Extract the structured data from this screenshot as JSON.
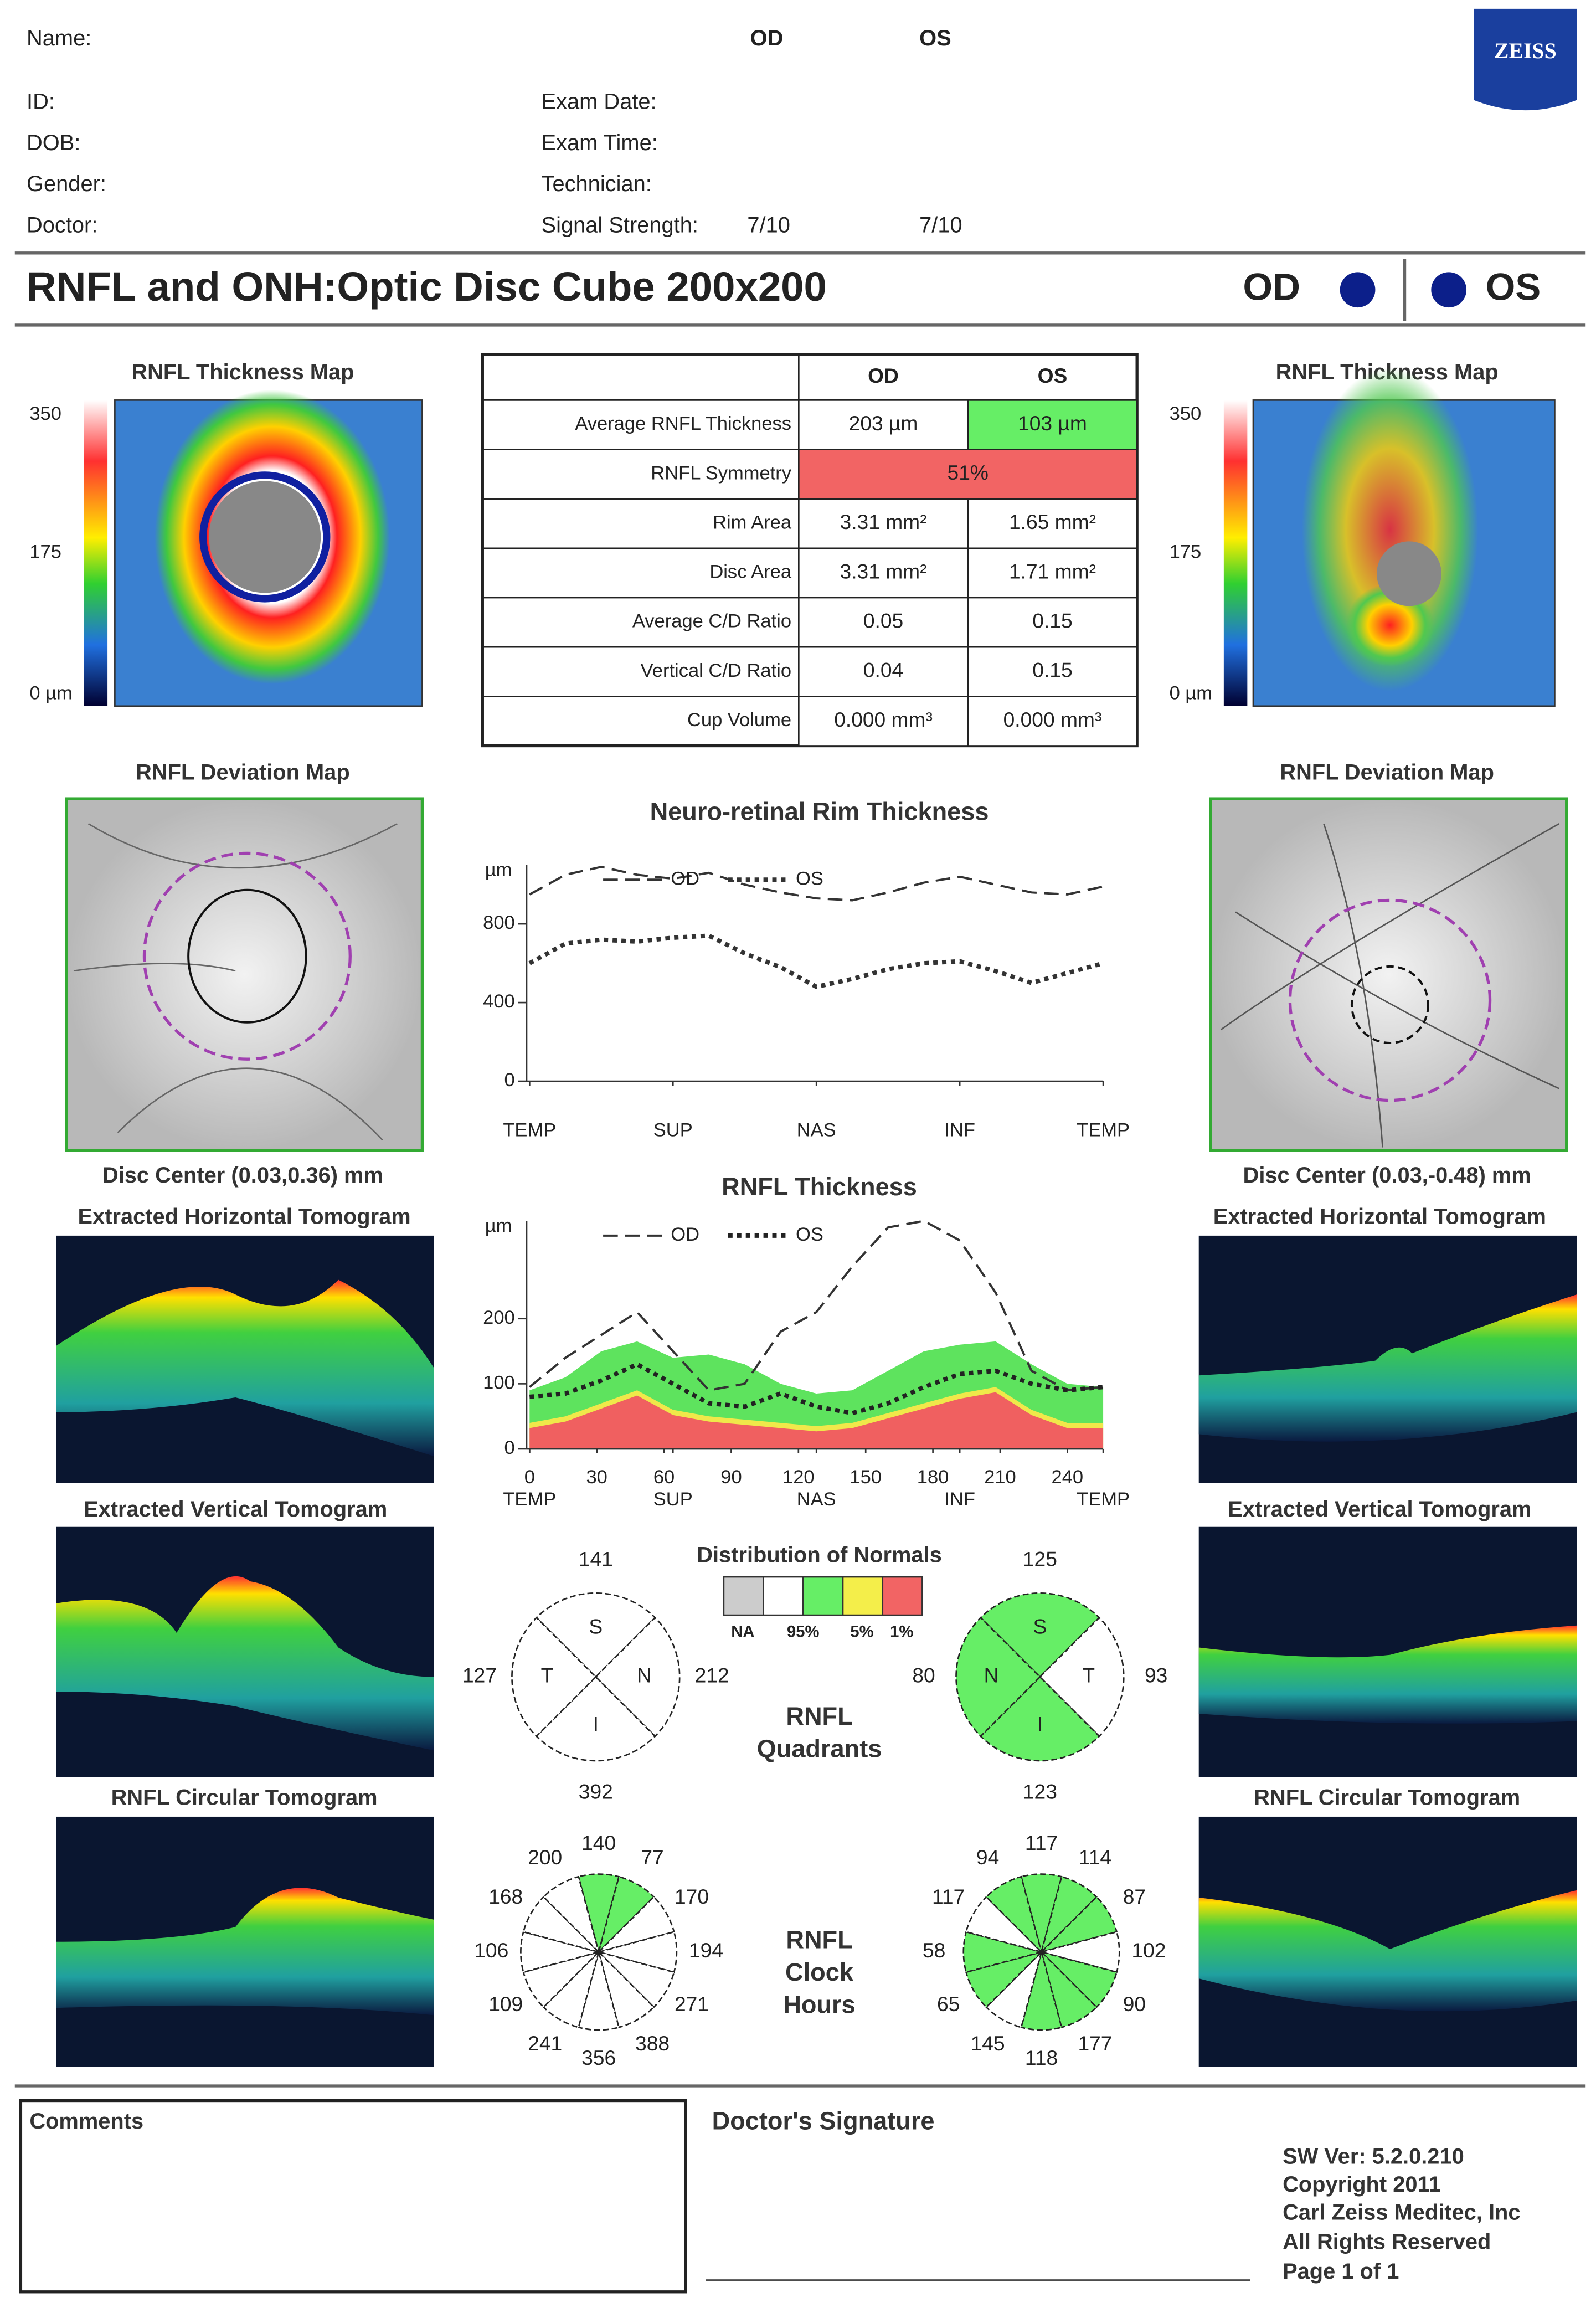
{
  "header": {
    "name": "Name:",
    "od": "OD",
    "os": "OS",
    "id": "ID:",
    "dob": "DOB:",
    "gender": "Gender:",
    "doctor": "Doctor:",
    "exam_date": "Exam Date:",
    "exam_time": "Exam Time:",
    "technician": "Technician:",
    "signal_label": "Signal Strength:",
    "signal_od": "7/10",
    "signal_os": "7/10",
    "logo": "ZEISS"
  },
  "title": "RNFL and ONH:Optic Disc Cube 200x200",
  "eyes": [
    "OD",
    "OS"
  ],
  "left_panel": {
    "thickness_map": "RNFL Thickness Map",
    "scale": [
      "350",
      "175",
      "0 µm"
    ],
    "deviation_map": "RNFL Deviation Map",
    "disc_center": "Disc Center  (0.03,0.36) mm",
    "horizontal": "Extracted Horizontal Tomogram",
    "vertical": "Extracted Vertical Tomogram",
    "circular": "RNFL Circular Tomogram"
  },
  "right_panel": {
    "thickness_map": "RNFL Thickness Map",
    "scale": [
      "350",
      "175",
      "0 µm"
    ],
    "deviation_map": "RNFL Deviation Map",
    "disc_center": "Disc Center  (0.03,-0.48) mm",
    "horizontal": "Extracted Horizontal Tomogram",
    "vertical": "Extracted Vertical Tomogram",
    "circular": "RNFL Circular Tomogram"
  },
  "table": {
    "columns": [
      "OD",
      "OS"
    ],
    "rows": [
      {
        "label": "Average RNFL Thickness",
        "values": [
          "203 µm",
          "103 µm"
        ],
        "colors": [
          "#ffffff",
          "#66ee66"
        ]
      },
      {
        "label": "RNFL Symmetry",
        "values": [
          "51%"
        ],
        "colors": [
          "#f26464"
        ]
      },
      {
        "label": "Rim Area",
        "values": [
          "3.31 mm²",
          "1.65 mm²"
        ]
      },
      {
        "label": "Disc Area",
        "values": [
          "3.31 mm²",
          "1.71 mm²"
        ]
      },
      {
        "label": "Average C/D Ratio",
        "values": [
          "0.05",
          "0.15"
        ]
      },
      {
        "label": "Vertical C/D Ratio",
        "values": [
          "0.04",
          "0.15"
        ]
      },
      {
        "label": "Cup Volume",
        "values": [
          "0.000 mm³",
          "0.000 mm³"
        ]
      }
    ]
  },
  "rim_chart": {
    "type": "line",
    "title": "Neuro-retinal Rim Thickness",
    "y_unit": "µm",
    "x": [
      0,
      16,
      32,
      48,
      64,
      80,
      96,
      112,
      128,
      144,
      160,
      176,
      192,
      208,
      224,
      240,
      256
    ],
    "xlim": [
      0,
      256
    ],
    "xticks": [
      {
        "value": 0,
        "label": "TEMP"
      },
      {
        "value": 64,
        "label": "SUP"
      },
      {
        "value": 128,
        "label": "NAS"
      },
      {
        "value": 192,
        "label": "INF"
      },
      {
        "value": 256,
        "label": "TEMP"
      }
    ],
    "ylim": [
      0,
      1100
    ],
    "yticks": [
      0,
      400,
      800
    ],
    "series": [
      {
        "name": "OD",
        "color": "#333333",
        "dash": "10 5",
        "values": [
          950,
          1050,
          1090,
          1050,
          1030,
          1060,
          1000,
          960,
          930,
          920,
          960,
          1010,
          1040,
          1000,
          960,
          950,
          990
        ]
      },
      {
        "name": "OS",
        "color": "#333333",
        "dash": "3 3",
        "values": [
          600,
          700,
          720,
          710,
          730,
          740,
          650,
          580,
          480,
          520,
          570,
          600,
          610,
          560,
          500,
          550,
          600
        ]
      }
    ]
  },
  "rnfl_chart": {
    "type": "line",
    "title": "RNFL Thickness",
    "y_unit": "µm",
    "x": [
      0,
      16,
      32,
      48,
      64,
      80,
      96,
      112,
      128,
      144,
      160,
      176,
      192,
      208,
      224,
      240,
      256
    ],
    "xlim": [
      0,
      256
    ],
    "xticks": [
      0,
      30,
      60,
      90,
      120,
      150,
      180,
      210,
      240
    ],
    "region_ticks": [
      {
        "value": 0,
        "label": "TEMP"
      },
      {
        "value": 64,
        "label": "SUP"
      },
      {
        "value": 128,
        "label": "NAS"
      },
      {
        "value": 192,
        "label": "INF"
      },
      {
        "value": 256,
        "label": "TEMP"
      }
    ],
    "ylim": [
      0,
      350
    ],
    "yticks": [
      0,
      100,
      200
    ],
    "normative": {
      "percentile_95": [
        90,
        110,
        150,
        165,
        140,
        145,
        130,
        100,
        85,
        90,
        120,
        150,
        160,
        165,
        130,
        100,
        95
      ],
      "percentile_5": [
        40,
        50,
        70,
        90,
        60,
        50,
        45,
        40,
        35,
        40,
        55,
        70,
        85,
        95,
        60,
        40,
        40
      ],
      "percentile_1": [
        32,
        42,
        62,
        82,
        52,
        42,
        37,
        32,
        27,
        32,
        47,
        62,
        77,
        87,
        52,
        32,
        32
      ],
      "colors": [
        "#5ee35e",
        "#f0e84a",
        "#f06060"
      ]
    },
    "series": [
      {
        "name": "OD",
        "color": "#333333",
        "dash": "10 5",
        "values": [
          95,
          140,
          175,
          210,
          150,
          90,
          100,
          180,
          210,
          280,
          340,
          350,
          320,
          240,
          120,
          90,
          95
        ]
      },
      {
        "name": "OS",
        "color": "#222222",
        "dash": "3 3",
        "values": [
          80,
          85,
          105,
          130,
          100,
          70,
          65,
          85,
          65,
          55,
          70,
          95,
          115,
          120,
          100,
          90,
          95
        ]
      }
    ]
  },
  "normals": {
    "title": "Distribution of Normals",
    "colors": [
      "#cccccc",
      "#ffffff",
      "#66ee66",
      "#f4ee4a",
      "#f26464"
    ],
    "labels": [
      "NA",
      null,
      "95%",
      "5%",
      "1%"
    ]
  },
  "quadrants": {
    "label": [
      "RNFL",
      "Quadrants"
    ],
    "od": [
      {
        "sector": "S",
        "value": 141,
        "color": "#ffffff"
      },
      {
        "sector": "N",
        "value": 212,
        "color": "#ffffff"
      },
      {
        "sector": "I",
        "value": 392,
        "color": "#ffffff"
      },
      {
        "sector": "T",
        "value": 127,
        "color": "#ffffff"
      }
    ],
    "os": [
      {
        "sector": "S",
        "value": 125,
        "color": "#66ee66"
      },
      {
        "sector": "T",
        "value": 93,
        "color": "#ffffff"
      },
      {
        "sector": "I",
        "value": 123,
        "color": "#66ee66"
      },
      {
        "sector": "N",
        "value": 80,
        "color": "#66ee66"
      }
    ]
  },
  "clock_hours": {
    "label": [
      "RNFL",
      "Clock",
      "Hours"
    ],
    "od": {
      "values": [
        140,
        77,
        170,
        194,
        271,
        388,
        356,
        241,
        109,
        106,
        168,
        200
      ],
      "colors": [
        "#66ee66",
        "#66ee66",
        "#ffffff",
        "#ffffff",
        "#ffffff",
        "#ffffff",
        "#ffffff",
        "#ffffff",
        "#ffffff",
        "#ffffff",
        "#ffffff",
        "#ffffff"
      ]
    },
    "os": {
      "values": [
        117,
        114,
        87,
        102,
        90,
        177,
        118,
        145,
        65,
        58,
        117,
        94
      ],
      "colors": [
        "#66ee66",
        "#66ee66",
        "#66ee66",
        "#ffffff",
        "#66ee66",
        "#66ee66",
        "#66ee66",
        "#ffffff",
        "#66ee66",
        "#66ee66",
        "#ffffff",
        "#66ee66"
      ]
    }
  },
  "footer": {
    "comments": "Comments",
    "signature": "Doctor's Signature",
    "info": [
      "SW Ver: 5.2.0.210",
      "Copyright 2011",
      "Carl Zeiss Meditec, Inc",
      "All Rights Reserved",
      "Page 1 of 1"
    ]
  }
}
